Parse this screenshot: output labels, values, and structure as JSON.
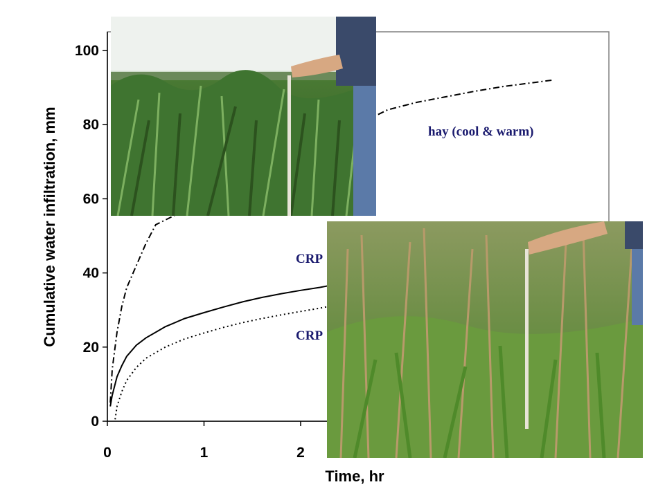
{
  "chart_data": {
    "type": "line",
    "title": "",
    "xlabel": "Time, hr",
    "ylabel": "Cumulative water infiltration, mm",
    "xlim": [
      0,
      5
    ],
    "ylim": [
      0,
      100
    ],
    "x_ticks": [
      "0",
      "1",
      "2"
    ],
    "y_ticks": [
      "0",
      "20",
      "40",
      "60",
      "80",
      "100"
    ],
    "grid": false,
    "series": [
      {
        "name": "hay (cool & warm)",
        "style": "dash-dot",
        "x": [
          0.03,
          0.05,
          0.1,
          0.15,
          0.2,
          0.3,
          0.4,
          0.5,
          2.9,
          3.2,
          3.5,
          3.8,
          4.1,
          4.4,
          4.6
        ],
        "y": [
          5,
          14,
          24,
          31,
          36,
          42,
          48,
          53,
          84,
          86,
          87.5,
          89,
          90.3,
          91.3,
          92
        ]
      },
      {
        "name": "CRP",
        "style": "solid",
        "x": [
          0.03,
          0.05,
          0.1,
          0.15,
          0.2,
          0.3,
          0.4,
          0.5,
          0.6,
          0.8,
          1.0,
          1.2,
          1.4,
          1.6,
          1.8,
          2.0,
          2.2,
          2.3
        ],
        "y": [
          4,
          7,
          12,
          15,
          17.5,
          20.5,
          22.5,
          24,
          25.5,
          27.7,
          29.3,
          30.8,
          32.2,
          33.4,
          34.4,
          35.3,
          36.1,
          36.6
        ]
      },
      {
        "name": "CRP",
        "style": "dotted",
        "x": [
          0.08,
          0.1,
          0.15,
          0.2,
          0.3,
          0.4,
          0.5,
          0.6,
          0.8,
          1.0,
          1.2,
          1.4,
          1.6,
          1.8,
          2.0,
          2.2,
          2.3
        ],
        "y": [
          0.5,
          4,
          8,
          11,
          14.5,
          17,
          18.5,
          20,
          22.2,
          23.8,
          25.3,
          26.6,
          27.7,
          28.7,
          29.6,
          30.5,
          31
        ]
      }
    ],
    "annotations": [
      "hay (cool & warm)",
      "CRP",
      "CRP"
    ]
  },
  "colors": {
    "line": "#000000",
    "label_text": "#1a1a6e",
    "frame": "#808080"
  }
}
